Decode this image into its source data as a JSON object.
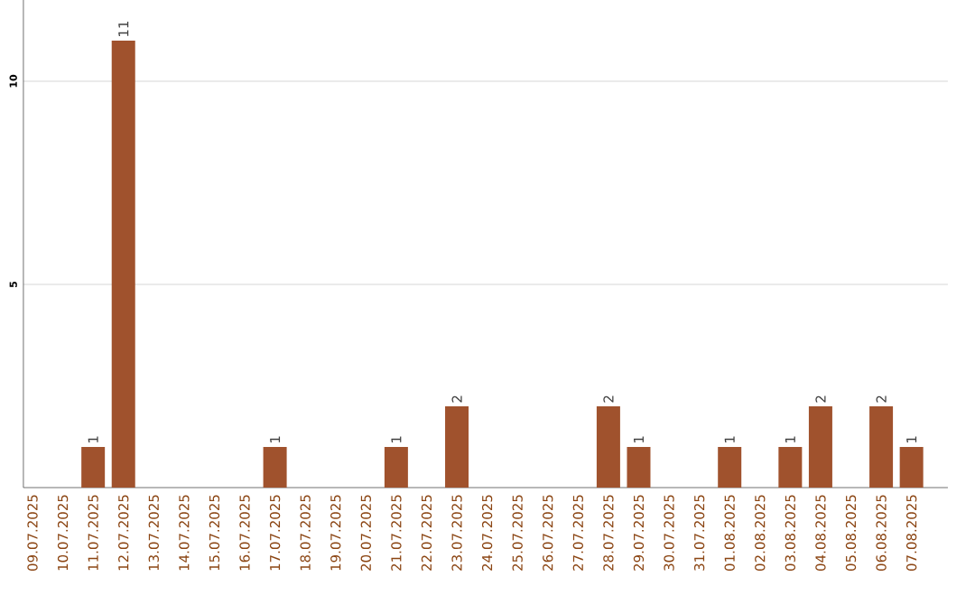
{
  "chart_data": {
    "type": "bar",
    "categories": [
      "09.07.2025",
      "10.07.2025",
      "11.07.2025",
      "12.07.2025",
      "13.07.2025",
      "14.07.2025",
      "15.07.2025",
      "16.07.2025",
      "17.07.2025",
      "18.07.2025",
      "19.07.2025",
      "20.07.2025",
      "21.07.2025",
      "22.07.2025",
      "23.07.2025",
      "24.07.2025",
      "25.07.2025",
      "26.07.2025",
      "27.07.2025",
      "28.07.2025",
      "29.07.2025",
      "30.07.2025",
      "31.07.2025",
      "01.08.2025",
      "02.08.2025",
      "03.08.2025",
      "04.08.2025",
      "05.08.2025",
      "06.08.2025",
      "07.08.2025"
    ],
    "values": [
      0,
      0,
      1,
      11,
      0,
      0,
      0,
      0,
      1,
      0,
      0,
      0,
      1,
      0,
      2,
      0,
      0,
      0,
      0,
      2,
      1,
      0,
      0,
      1,
      0,
      1,
      2,
      0,
      2,
      1
    ],
    "value_labels": [
      null,
      null,
      "1",
      "11",
      null,
      null,
      null,
      null,
      "1",
      null,
      null,
      null,
      "1",
      null,
      "2",
      null,
      null,
      null,
      null,
      "2",
      "1",
      null,
      null,
      "1",
      null,
      "1",
      "2",
      null,
      "2",
      "1"
    ],
    "color": "#a0522d",
    "ylim": [
      0,
      12
    ],
    "yticks": [
      5,
      10
    ],
    "grid": "y"
  }
}
